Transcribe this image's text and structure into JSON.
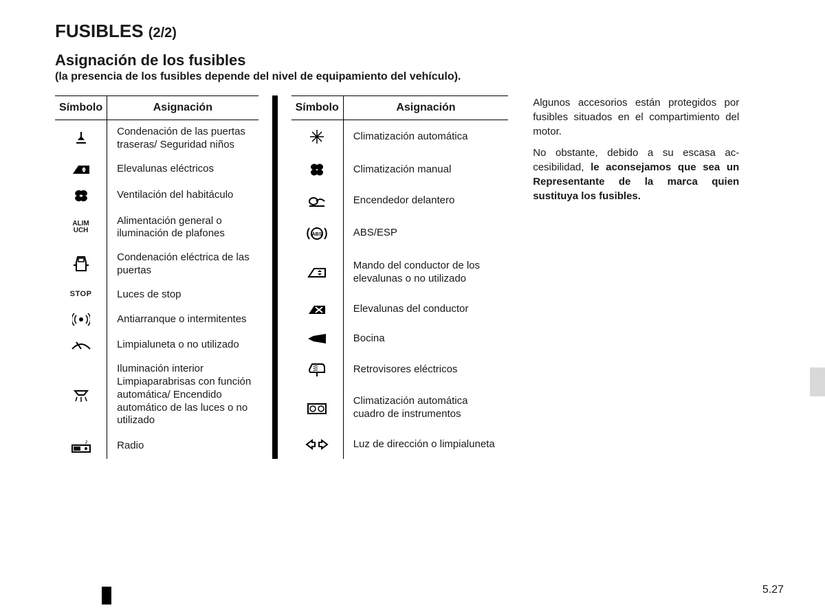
{
  "title_main": "FUSIBLES ",
  "title_sub": "(2/2)",
  "section_title": "Asignación de los fusibles",
  "section_note": "(la presencia de los fusibles depende del nivel de equipamiento del vehículo).",
  "header_symbol": "Símbolo",
  "header_assign": "Asignación",
  "table1": [
    {
      "icon": "door-lock",
      "desc": "Condenación de las puertas traseras/ Seguridad niños"
    },
    {
      "icon": "window",
      "desc": "Elevalunas eléctricos"
    },
    {
      "icon": "fan",
      "desc": "Ventilación del habitáculo"
    },
    {
      "icon": "alim",
      "desc": "Alimentación general o iluminación de plafones"
    },
    {
      "icon": "car-lock",
      "desc": "Condenación eléctrica de las puertas"
    },
    {
      "icon": "stop",
      "desc": "Luces de stop"
    },
    {
      "icon": "antenna",
      "desc": "Antiarranque o intermitentes"
    },
    {
      "icon": "wiper",
      "desc": "Limpialuneta o no utilizado"
    },
    {
      "icon": "light",
      "desc": "Iluminación interior Limpiaparabrisas con función automática/ Encendido automático de las luces o no utilizado"
    },
    {
      "icon": "radio",
      "desc": "Radio"
    }
  ],
  "table2": [
    {
      "icon": "snow",
      "desc": "Climatización automática"
    },
    {
      "icon": "fan-solid",
      "desc": "Climatización manual"
    },
    {
      "icon": "lighter",
      "desc": "Encendedor delantero"
    },
    {
      "icon": "abs",
      "desc": "ABS/ESP"
    },
    {
      "icon": "window-ctrl",
      "desc": "Mando del conductor de los elevalunas o no utilizado"
    },
    {
      "icon": "window-x",
      "desc": "Elevalunas del conductor"
    },
    {
      "icon": "horn",
      "desc": "Bocina"
    },
    {
      "icon": "mirror",
      "desc": "Retrovisores eléctricos"
    },
    {
      "icon": "dash",
      "desc": "Climatización automática cuadro de instrumentos"
    },
    {
      "icon": "arrows",
      "desc": "Luz de dirección o limpialuneta"
    }
  ],
  "side_p1": "Algunos accesorios están protegidos por fusibles situados en el comparti­miento del motor.",
  "side_p2a": "No obstante, debido a su escasa ac­cesibilidad, ",
  "side_p2b": "le aconsejamos que sea un Representante de la marca quien sustituya los fusibles.",
  "page_number": "5.27",
  "alim_text": "ALIM\nUCH"
}
